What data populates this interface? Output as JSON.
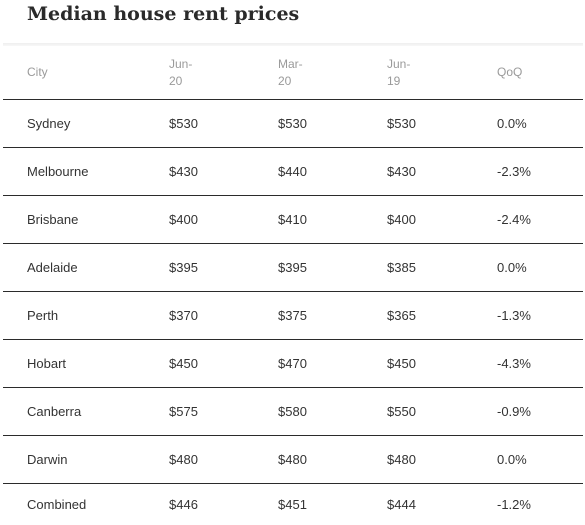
{
  "title": "Median house rent prices",
  "columns": {
    "city": "City",
    "jun20": [
      "Jun-",
      "20"
    ],
    "mar20": [
      "Mar-",
      "20"
    ],
    "jun19": [
      "Jun-",
      "19"
    ],
    "qoq": "QoQ"
  },
  "rows": [
    {
      "city": "Sydney",
      "jun20": "$530",
      "mar20": "$530",
      "jun19": "$530",
      "qoq": "0.0%"
    },
    {
      "city": "Melbourne",
      "jun20": "$430",
      "mar20": "$440",
      "jun19": "$430",
      "qoq": "-2.3%"
    },
    {
      "city": "Brisbane",
      "jun20": "$400",
      "mar20": "$410",
      "jun19": "$400",
      "qoq": "-2.4%"
    },
    {
      "city": "Adelaide",
      "jun20": "$395",
      "mar20": "$395",
      "jun19": "$385",
      "qoq": "0.0%"
    },
    {
      "city": "Perth",
      "jun20": "$370",
      "mar20": "$375",
      "jun19": "$365",
      "qoq": "-1.3%"
    },
    {
      "city": "Hobart",
      "jun20": "$450",
      "mar20": "$470",
      "jun19": "$450",
      "qoq": "-4.3%"
    },
    {
      "city": "Canberra",
      "jun20": "$575",
      "mar20": "$580",
      "jun19": "$550",
      "qoq": "-0.9%"
    },
    {
      "city": "Darwin",
      "jun20": "$480",
      "mar20": "$480",
      "jun19": "$480",
      "qoq": "0.0%"
    },
    {
      "city": "Combined",
      "jun20": "$446",
      "mar20": "$451",
      "jun19": "$444",
      "qoq": "-1.2%"
    }
  ]
}
